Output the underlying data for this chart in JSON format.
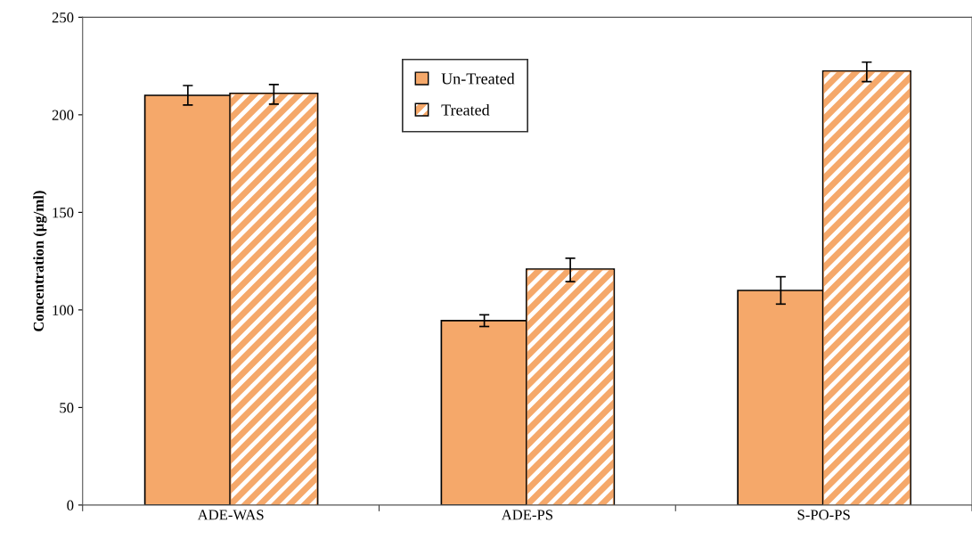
{
  "chart_data": {
    "type": "bar",
    "ylabel": "Concentration (µg/ml)",
    "categories": [
      "ADE-WAS",
      "ADE-PS",
      "S-PO-PS"
    ],
    "series": [
      {
        "name": "Un-Treated",
        "color": "#f5a86a",
        "values": [
          210,
          94.5,
          110
        ],
        "errors": [
          5,
          3,
          7
        ]
      },
      {
        "name": "Treated",
        "color": "#f5a86a",
        "values": [
          210.5,
          120.5,
          222
        ],
        "errors": [
          5,
          6,
          5
        ]
      }
    ],
    "ylim": [
      0,
      250
    ],
    "yticks": [
      0,
      50,
      100,
      150,
      200,
      250
    ],
    "grid": false,
    "legend": "top"
  }
}
